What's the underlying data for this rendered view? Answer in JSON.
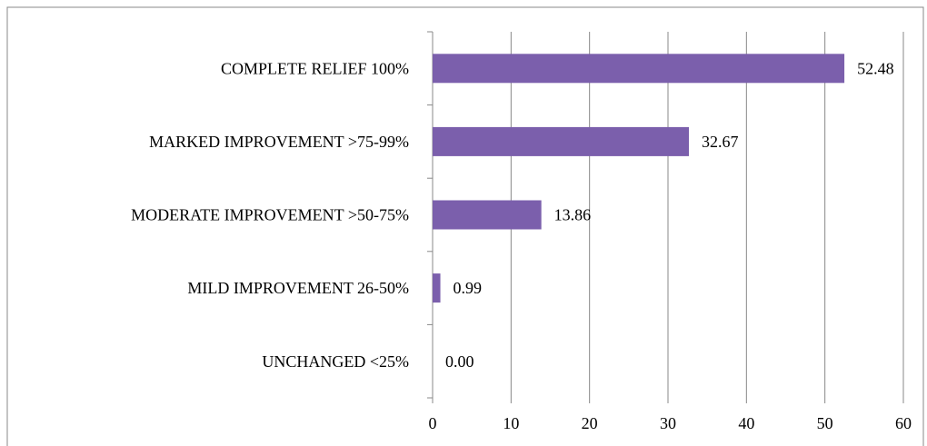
{
  "chart_data": {
    "type": "hbar",
    "categories": [
      "COMPLETE RELIEF 100%",
      "MARKED IMPROVEMENT >75-99%",
      "MODERATE IMPROVEMENT >50-75%",
      "MILD IMPROVEMENT 26-50%",
      "UNCHANGED <25%"
    ],
    "values": [
      52.48,
      32.67,
      13.86,
      0.99,
      0
    ],
    "value_labels": [
      "52.48",
      "32.67",
      "13.86",
      "0.99",
      "0.00"
    ],
    "color": "#7b5fac",
    "xlim": [
      0,
      60
    ],
    "xticks": [
      0,
      10,
      20,
      30,
      40,
      50,
      60
    ],
    "grid": true
  }
}
